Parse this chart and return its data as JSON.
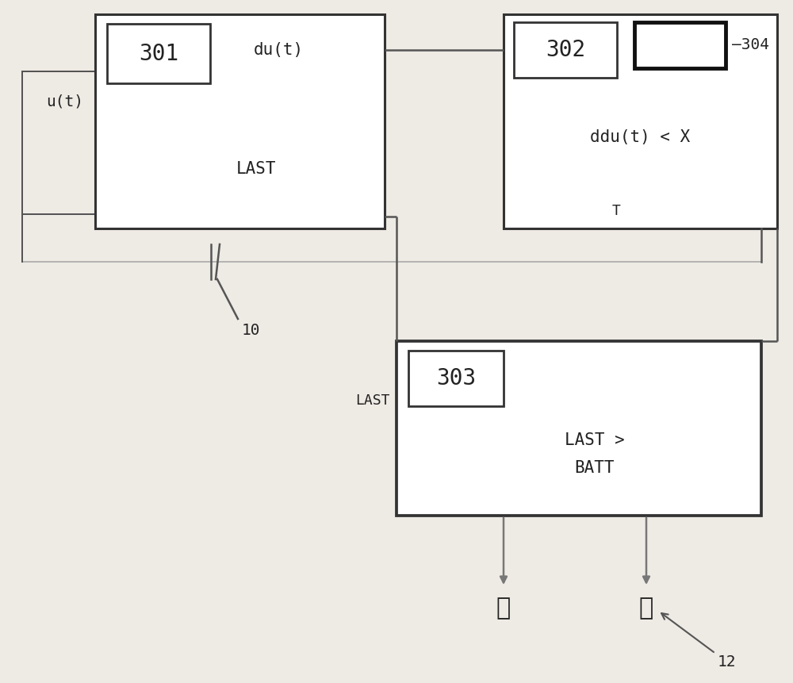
{
  "bg_color": "#eeeae4",
  "box_face": "#ffffff",
  "box_edge": "#333333",
  "inner_edge": "#333333",
  "line_color": "#555555",
  "arrow_color": "#777777",
  "text_color": "#222222",
  "label_ut": "u(t)",
  "label_dut": "du(t)",
  "label_ddut": "ddu(t) < X",
  "label_T": "T",
  "label_LAST_301": "LAST",
  "label_LAST_303": "LAST",
  "label_last_batt": "LAST >\nBATT",
  "label_301": "301",
  "label_302": "302",
  "label_303": "303",
  "label_304": "304",
  "label_10": "10",
  "label_12": "12",
  "label_yes": "是",
  "label_no": "否",
  "fs_number": 20,
  "fs_text": 15,
  "fs_label": 14,
  "fs_small": 13,
  "fs_chinese": 22,
  "lw_outer": 2.2,
  "lw_inner": 2.0,
  "lw_line": 1.8,
  "lw_304": 3.5
}
